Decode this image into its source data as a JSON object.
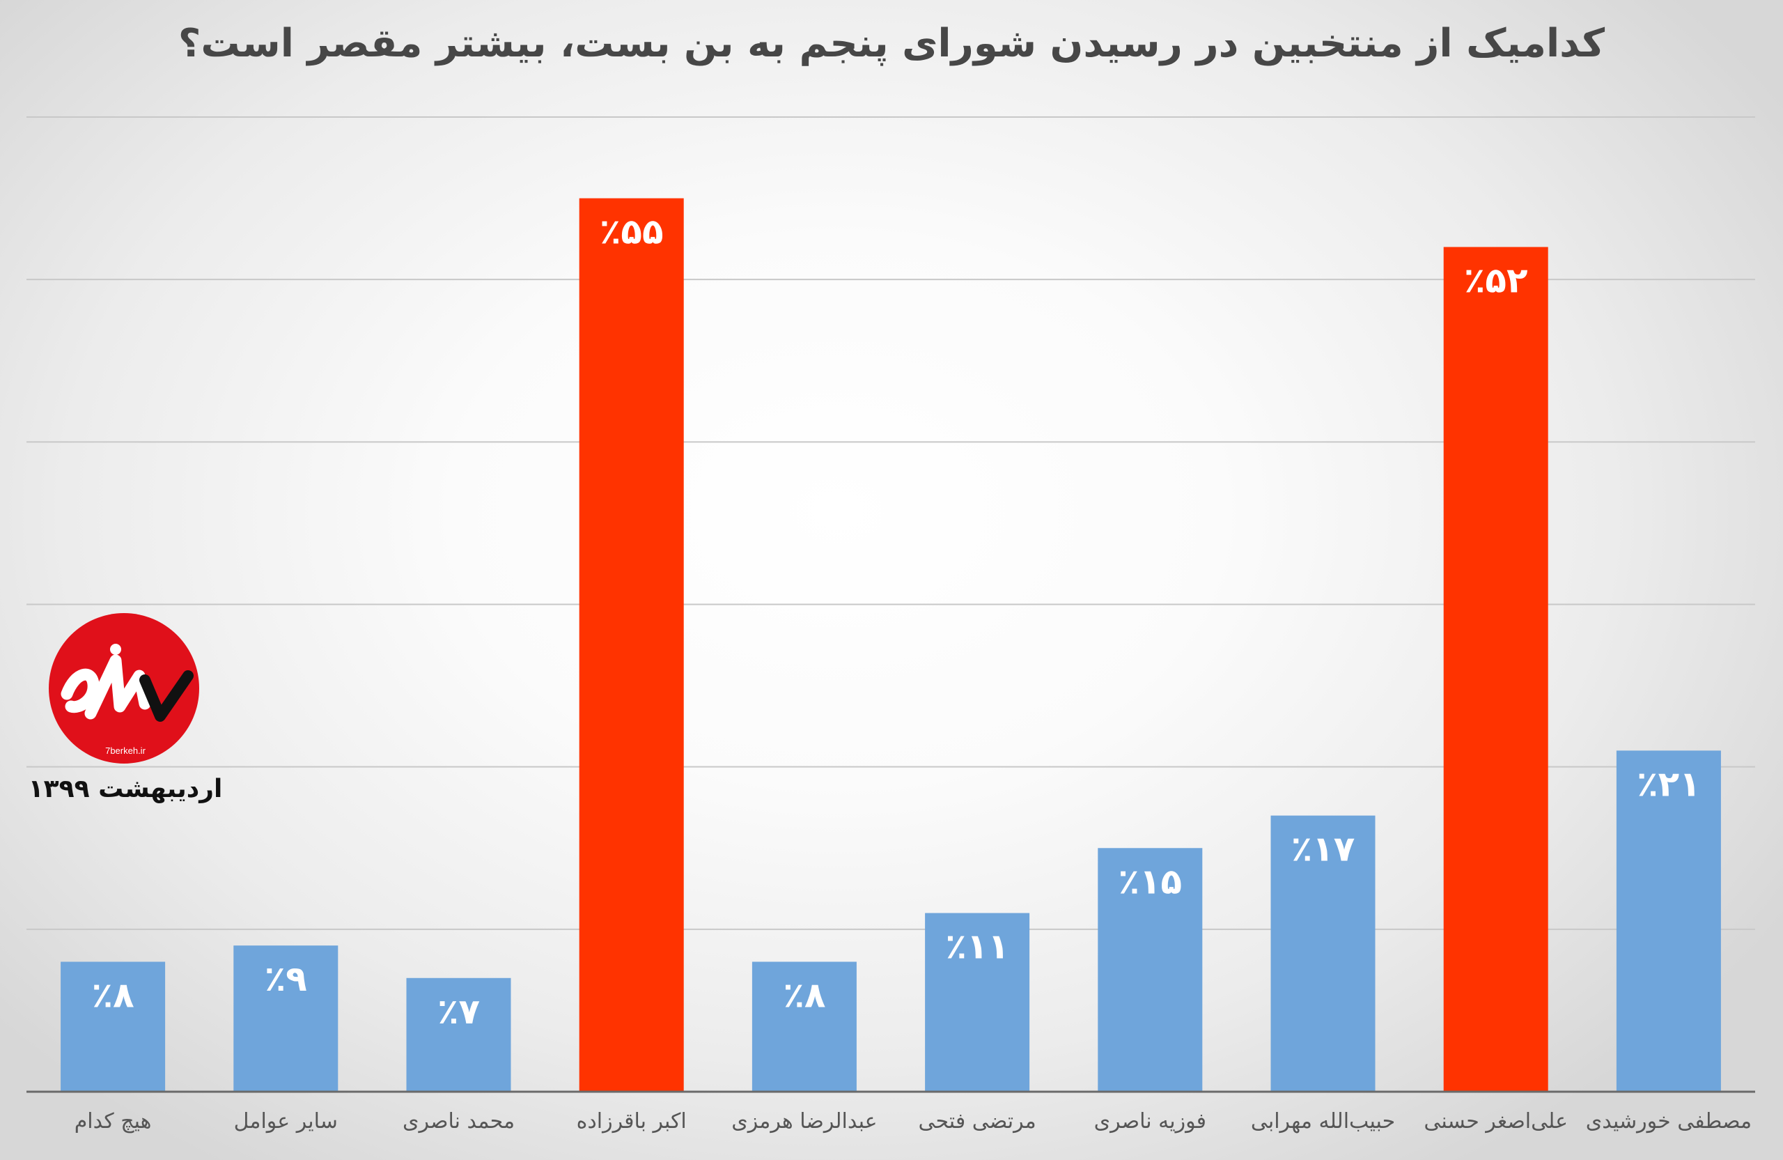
{
  "chart_data": {
    "type": "bar",
    "title": "کدامیک از منتخبین در رسیدن شورای پنجم به بن بست، بیشتر مقصر است؟",
    "categories": [
      "هیچ کدام",
      "سایر عوامل",
      "محمد ناصری",
      "اکبر باقرزاده",
      "عبدالرضا هرمزی",
      "مرتضی فتحی",
      "فوزیه ناصری",
      "حبیب‌الله مهرابی",
      "علی‌اصغر حسنی",
      "مصطفی خورشیدی"
    ],
    "values": [
      8,
      9,
      7,
      55,
      8,
      11,
      15,
      17,
      52,
      21
    ],
    "value_labels": [
      "٪۸",
      "٪۹",
      "٪۷",
      "٪۵۵",
      "٪۸",
      "٪۱۱",
      "٪۱۵",
      "٪۱۷",
      "٪۵۲",
      "٪۲۱"
    ],
    "highlight": [
      false,
      false,
      false,
      true,
      false,
      false,
      false,
      false,
      true,
      false
    ],
    "ylim": [
      0,
      60
    ],
    "grid": true,
    "xlabel": "",
    "ylabel": "",
    "colors": {
      "bar": "#6fa5db",
      "highlight": "#ff3300",
      "grid": "#c8c8c8",
      "axis": "#6a6a6a",
      "label": "#555555"
    }
  },
  "logo": {
    "icon": "7berkeh-logo-icon",
    "caption": "7berkeh.ir",
    "color": "#e0101a"
  },
  "date_label": "اردیبهشت ۱۳۹۹"
}
